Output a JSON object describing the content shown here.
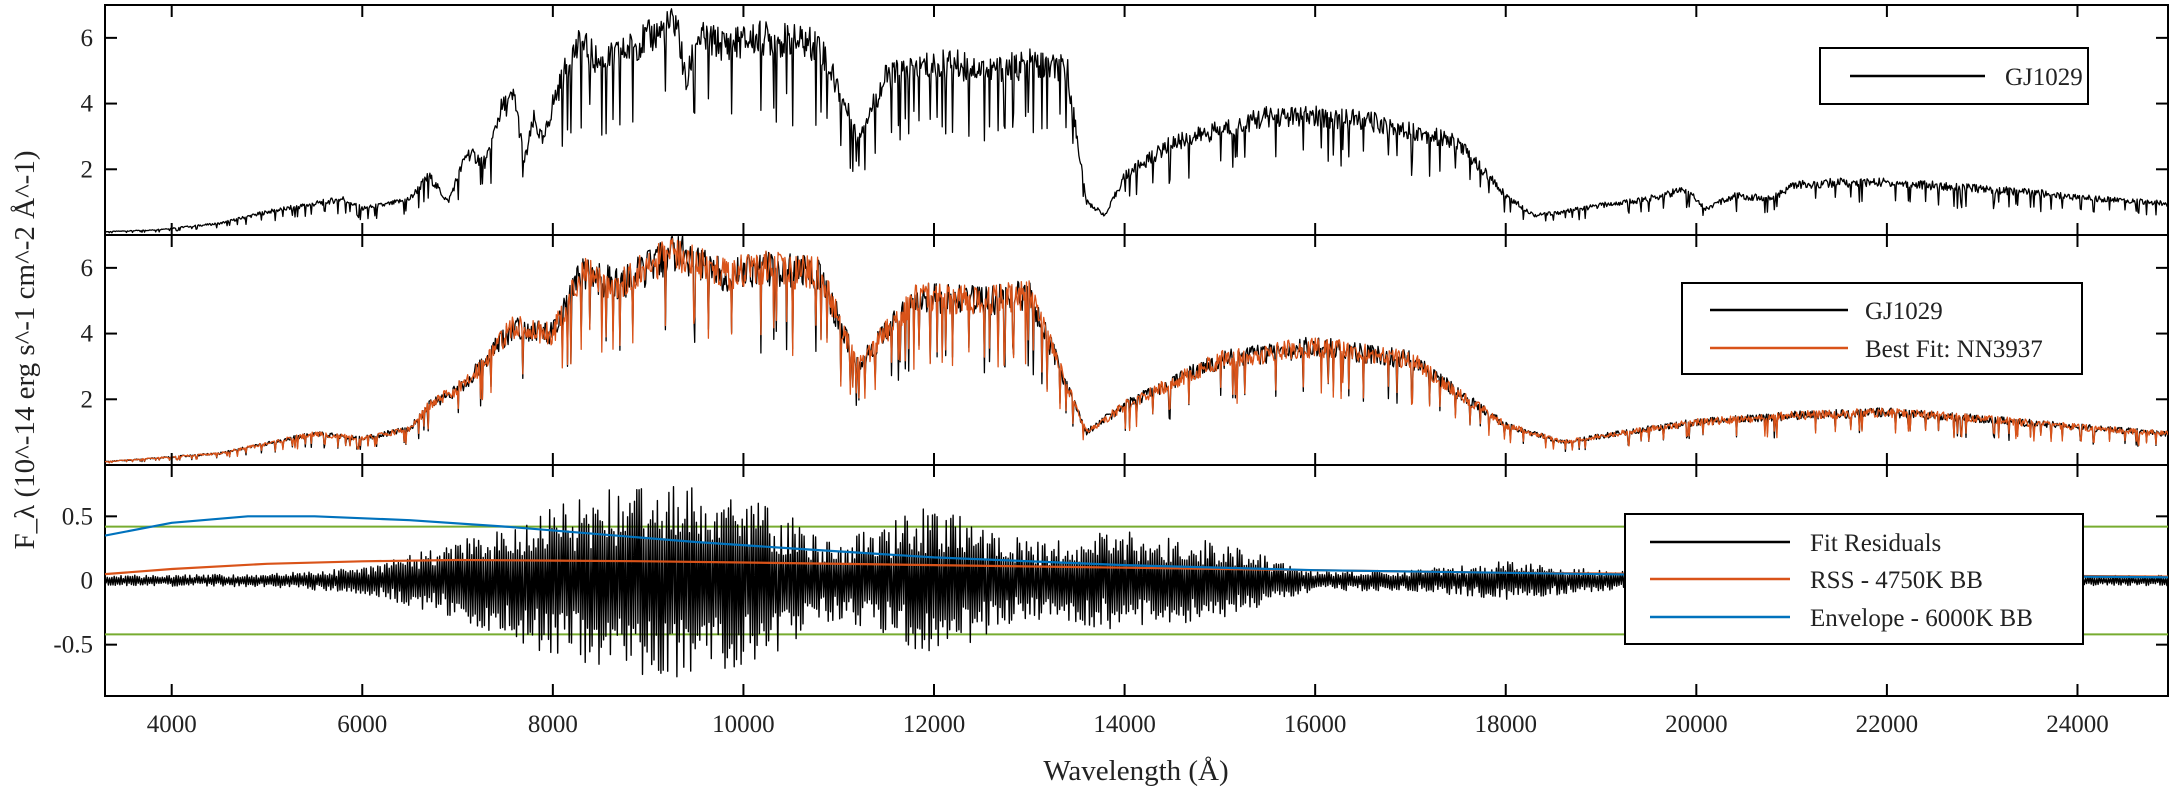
{
  "chart_data": [
    {
      "type": "line",
      "panel": "top",
      "xlim": [
        3300,
        24950
      ],
      "ylim": [
        0,
        7
      ],
      "yticks": [
        2,
        4,
        6
      ],
      "ytick_labels": [
        "2",
        "4",
        "6"
      ],
      "legend": {
        "placement": "right",
        "entries": [
          "GJ1029"
        ]
      },
      "series": [
        {
          "name": "GJ1029",
          "color": "#000000",
          "x": [
            3300,
            3800,
            4500,
            5000,
            5500,
            5800,
            6000,
            6300,
            6500,
            6700,
            6900,
            7100,
            7300,
            7450,
            7600,
            7700,
            7800,
            7900,
            8000,
            8200,
            8300,
            8500,
            8700,
            9000,
            9200,
            9300,
            9400,
            9500,
            9800,
            10200,
            10800,
            11200,
            11500,
            11800,
            12200,
            12600,
            13000,
            13400,
            13600,
            13800,
            14000,
            14500,
            15000,
            15500,
            16000,
            16500,
            17000,
            17500,
            18000,
            18300,
            18600,
            19000,
            19500,
            19900,
            20100,
            20400,
            20800,
            21000,
            21500,
            22000,
            22500,
            23000,
            23500,
            24000,
            24500,
            24950
          ],
          "y": [
            0.1,
            0.15,
            0.35,
            0.7,
            0.95,
            1.1,
            0.8,
            0.95,
            1.1,
            1.8,
            1.0,
            2.5,
            2.2,
            3.8,
            4.2,
            2.2,
            3.5,
            2.8,
            4.0,
            5.5,
            5.8,
            5.2,
            5.5,
            6.0,
            6.3,
            6.5,
            4.5,
            6.0,
            5.8,
            6.0,
            5.8,
            3.0,
            4.8,
            5.1,
            5.2,
            5.0,
            5.2,
            5.0,
            1.0,
            0.6,
            1.8,
            2.8,
            3.2,
            3.6,
            3.6,
            3.5,
            3.2,
            2.8,
            1.2,
            0.6,
            0.7,
            0.9,
            1.1,
            1.4,
            0.8,
            1.2,
            1.1,
            1.5,
            1.6,
            1.6,
            1.5,
            1.4,
            1.3,
            1.15,
            1.05,
            0.95
          ]
        }
      ]
    },
    {
      "type": "line",
      "panel": "middle",
      "xlim": [
        3300,
        24950
      ],
      "ylim": [
        0,
        7
      ],
      "yticks": [
        2,
        4,
        6
      ],
      "ytick_labels": [
        "2",
        "4",
        "6"
      ],
      "legend": {
        "placement": "right",
        "entries": [
          "GJ1029",
          "Best Fit: NN3937"
        ]
      },
      "series": [
        {
          "name": "GJ1029",
          "color": "#000000",
          "x": [
            3300,
            4500,
            5500,
            6000,
            6500,
            6700,
            7100,
            7450,
            7600,
            8000,
            8300,
            8700,
            9300,
            9800,
            10200,
            10800,
            11200,
            11800,
            12600,
            13000,
            13600,
            14000,
            15000,
            16000,
            17000,
            18000,
            18600,
            19500,
            20000,
            21000,
            22000,
            23000,
            24000,
            24950
          ],
          "y": [
            0.1,
            0.35,
            0.95,
            0.8,
            1.1,
            1.8,
            2.5,
            3.8,
            4.2,
            4.0,
            5.8,
            5.5,
            6.5,
            5.8,
            6.0,
            5.8,
            3.0,
            5.1,
            5.0,
            5.2,
            1.0,
            1.8,
            3.2,
            3.6,
            3.2,
            1.2,
            0.7,
            1.1,
            1.3,
            1.5,
            1.6,
            1.4,
            1.15,
            0.95
          ]
        },
        {
          "name": "Best Fit: NN3937",
          "color": "#d95319",
          "x": [
            3300,
            4500,
            5500,
            6000,
            6500,
            6700,
            7100,
            7450,
            7600,
            8000,
            8300,
            8700,
            9300,
            9800,
            10200,
            10800,
            11200,
            11800,
            12600,
            13000,
            13600,
            14000,
            15000,
            16000,
            17000,
            18000,
            18600,
            19500,
            20000,
            21000,
            22000,
            23000,
            24000,
            24950
          ],
          "y": [
            0.1,
            0.35,
            0.95,
            0.8,
            1.1,
            1.8,
            2.5,
            3.8,
            4.2,
            4.0,
            5.8,
            5.5,
            6.5,
            5.8,
            6.0,
            5.8,
            3.0,
            5.1,
            5.0,
            5.2,
            1.0,
            1.8,
            3.2,
            3.6,
            3.2,
            1.2,
            0.7,
            1.1,
            1.3,
            1.5,
            1.6,
            1.4,
            1.15,
            0.95
          ]
        }
      ]
    },
    {
      "type": "line",
      "panel": "bottom",
      "xlabel": "Wavelength (Å)",
      "ylabel": "F_λ (10^-14 erg s^-1 cm^-2 Å^-1)",
      "xlim": [
        3300,
        24950
      ],
      "ylim": [
        -0.9,
        0.9
      ],
      "yticks": [
        -0.5,
        0,
        0.5
      ],
      "ytick_labels": [
        "-0.5",
        "0",
        "0.5"
      ],
      "xticks": [
        4000,
        6000,
        8000,
        10000,
        12000,
        14000,
        16000,
        18000,
        20000,
        22000,
        24000
      ],
      "xtick_labels": [
        "4000",
        "6000",
        "8000",
        "10000",
        "12000",
        "14000",
        "16000",
        "18000",
        "20000",
        "22000",
        "24000"
      ],
      "threshold_lines": {
        "color": "#77ac30",
        "values": [
          0.42,
          -0.42
        ]
      },
      "legend": {
        "placement": "right",
        "entries": [
          "Fit Residuals",
          "RSS - 4750K BB",
          "Envelope - 6000K BB"
        ]
      },
      "series": [
        {
          "name": "Fit Residuals",
          "color": "#000000",
          "x": [
            3300,
            5000,
            6000,
            7000,
            8000,
            9000,
            10000,
            11000,
            12000,
            13000,
            14000,
            15000,
            16000,
            17000,
            18000,
            19000,
            20000,
            21000,
            22000,
            23000,
            24000,
            24950
          ],
          "amplitude": [
            0.04,
            0.05,
            0.1,
            0.3,
            0.6,
            0.8,
            0.7,
            0.3,
            0.6,
            0.3,
            0.4,
            0.3,
            0.08,
            0.08,
            0.15,
            0.08,
            0.06,
            0.04,
            0.04,
            0.04,
            0.04,
            0.04
          ]
        },
        {
          "name": "RSS - 4750K BB",
          "color": "#d95319",
          "x": [
            3300,
            4000,
            5000,
            6000,
            7000,
            8000,
            9000,
            10000,
            12000,
            14000,
            16000,
            18000,
            20000,
            22000,
            24000,
            24950
          ],
          "y": [
            0.05,
            0.09,
            0.13,
            0.15,
            0.16,
            0.155,
            0.15,
            0.14,
            0.12,
            0.1,
            0.08,
            0.06,
            0.05,
            0.04,
            0.035,
            0.03
          ]
        },
        {
          "name": "Envelope - 6000K BB",
          "color": "#0072bd",
          "x": [
            3300,
            4000,
            4800,
            5500,
            6500,
            7500,
            8500,
            9500,
            10500,
            12000,
            14000,
            16000,
            18000,
            20000,
            22000,
            24000,
            24950
          ],
          "y": [
            0.35,
            0.45,
            0.5,
            0.5,
            0.47,
            0.42,
            0.36,
            0.3,
            0.25,
            0.18,
            0.12,
            0.08,
            0.06,
            0.04,
            0.03,
            0.03,
            0.025
          ]
        }
      ]
    }
  ]
}
